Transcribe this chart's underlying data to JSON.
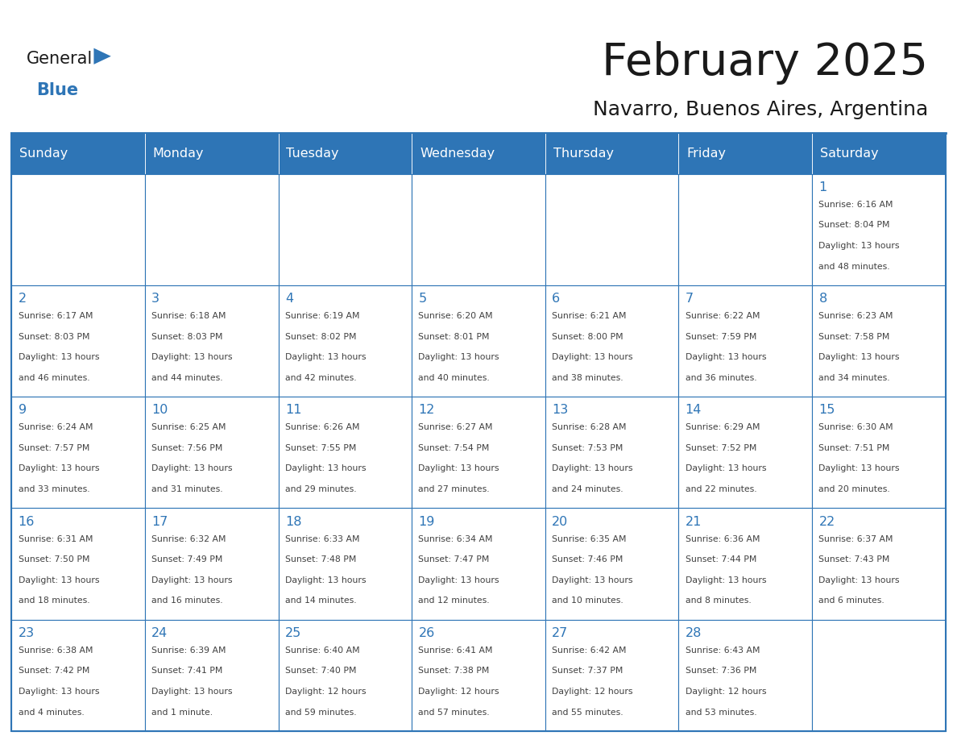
{
  "title": "February 2025",
  "subtitle": "Navarro, Buenos Aires, Argentina",
  "header_bg": "#2E75B6",
  "header_text_color": "#FFFFFF",
  "grid_color": "#2E75B6",
  "days_of_week": [
    "Sunday",
    "Monday",
    "Tuesday",
    "Wednesday",
    "Thursday",
    "Friday",
    "Saturday"
  ],
  "title_color": "#1a1a1a",
  "subtitle_color": "#1a1a1a",
  "day_number_color": "#2E75B6",
  "cell_text_color": "#404040",
  "logo_general_color": "#1a1a1a",
  "logo_blue_color": "#2E75B6",
  "logo_triangle_color": "#2E75B6",
  "calendar": [
    [
      null,
      null,
      null,
      null,
      null,
      null,
      {
        "day": 1,
        "sunrise": "6:16 AM",
        "sunset": "8:04 PM",
        "daylight_line1": "Daylight: 13 hours",
        "daylight_line2": "and 48 minutes."
      }
    ],
    [
      {
        "day": 2,
        "sunrise": "6:17 AM",
        "sunset": "8:03 PM",
        "daylight_line1": "Daylight: 13 hours",
        "daylight_line2": "and 46 minutes."
      },
      {
        "day": 3,
        "sunrise": "6:18 AM",
        "sunset": "8:03 PM",
        "daylight_line1": "Daylight: 13 hours",
        "daylight_line2": "and 44 minutes."
      },
      {
        "day": 4,
        "sunrise": "6:19 AM",
        "sunset": "8:02 PM",
        "daylight_line1": "Daylight: 13 hours",
        "daylight_line2": "and 42 minutes."
      },
      {
        "day": 5,
        "sunrise": "6:20 AM",
        "sunset": "8:01 PM",
        "daylight_line1": "Daylight: 13 hours",
        "daylight_line2": "and 40 minutes."
      },
      {
        "day": 6,
        "sunrise": "6:21 AM",
        "sunset": "8:00 PM",
        "daylight_line1": "Daylight: 13 hours",
        "daylight_line2": "and 38 minutes."
      },
      {
        "day": 7,
        "sunrise": "6:22 AM",
        "sunset": "7:59 PM",
        "daylight_line1": "Daylight: 13 hours",
        "daylight_line2": "and 36 minutes."
      },
      {
        "day": 8,
        "sunrise": "6:23 AM",
        "sunset": "7:58 PM",
        "daylight_line1": "Daylight: 13 hours",
        "daylight_line2": "and 34 minutes."
      }
    ],
    [
      {
        "day": 9,
        "sunrise": "6:24 AM",
        "sunset": "7:57 PM",
        "daylight_line1": "Daylight: 13 hours",
        "daylight_line2": "and 33 minutes."
      },
      {
        "day": 10,
        "sunrise": "6:25 AM",
        "sunset": "7:56 PM",
        "daylight_line1": "Daylight: 13 hours",
        "daylight_line2": "and 31 minutes."
      },
      {
        "day": 11,
        "sunrise": "6:26 AM",
        "sunset": "7:55 PM",
        "daylight_line1": "Daylight: 13 hours",
        "daylight_line2": "and 29 minutes."
      },
      {
        "day": 12,
        "sunrise": "6:27 AM",
        "sunset": "7:54 PM",
        "daylight_line1": "Daylight: 13 hours",
        "daylight_line2": "and 27 minutes."
      },
      {
        "day": 13,
        "sunrise": "6:28 AM",
        "sunset": "7:53 PM",
        "daylight_line1": "Daylight: 13 hours",
        "daylight_line2": "and 24 minutes."
      },
      {
        "day": 14,
        "sunrise": "6:29 AM",
        "sunset": "7:52 PM",
        "daylight_line1": "Daylight: 13 hours",
        "daylight_line2": "and 22 minutes."
      },
      {
        "day": 15,
        "sunrise": "6:30 AM",
        "sunset": "7:51 PM",
        "daylight_line1": "Daylight: 13 hours",
        "daylight_line2": "and 20 minutes."
      }
    ],
    [
      {
        "day": 16,
        "sunrise": "6:31 AM",
        "sunset": "7:50 PM",
        "daylight_line1": "Daylight: 13 hours",
        "daylight_line2": "and 18 minutes."
      },
      {
        "day": 17,
        "sunrise": "6:32 AM",
        "sunset": "7:49 PM",
        "daylight_line1": "Daylight: 13 hours",
        "daylight_line2": "and 16 minutes."
      },
      {
        "day": 18,
        "sunrise": "6:33 AM",
        "sunset": "7:48 PM",
        "daylight_line1": "Daylight: 13 hours",
        "daylight_line2": "and 14 minutes."
      },
      {
        "day": 19,
        "sunrise": "6:34 AM",
        "sunset": "7:47 PM",
        "daylight_line1": "Daylight: 13 hours",
        "daylight_line2": "and 12 minutes."
      },
      {
        "day": 20,
        "sunrise": "6:35 AM",
        "sunset": "7:46 PM",
        "daylight_line1": "Daylight: 13 hours",
        "daylight_line2": "and 10 minutes."
      },
      {
        "day": 21,
        "sunrise": "6:36 AM",
        "sunset": "7:44 PM",
        "daylight_line1": "Daylight: 13 hours",
        "daylight_line2": "and 8 minutes."
      },
      {
        "day": 22,
        "sunrise": "6:37 AM",
        "sunset": "7:43 PM",
        "daylight_line1": "Daylight: 13 hours",
        "daylight_line2": "and 6 minutes."
      }
    ],
    [
      {
        "day": 23,
        "sunrise": "6:38 AM",
        "sunset": "7:42 PM",
        "daylight_line1": "Daylight: 13 hours",
        "daylight_line2": "and 4 minutes."
      },
      {
        "day": 24,
        "sunrise": "6:39 AM",
        "sunset": "7:41 PM",
        "daylight_line1": "Daylight: 13 hours",
        "daylight_line2": "and 1 minute."
      },
      {
        "day": 25,
        "sunrise": "6:40 AM",
        "sunset": "7:40 PM",
        "daylight_line1": "Daylight: 12 hours",
        "daylight_line2": "and 59 minutes."
      },
      {
        "day": 26,
        "sunrise": "6:41 AM",
        "sunset": "7:38 PM",
        "daylight_line1": "Daylight: 12 hours",
        "daylight_line2": "and 57 minutes."
      },
      {
        "day": 27,
        "sunrise": "6:42 AM",
        "sunset": "7:37 PM",
        "daylight_line1": "Daylight: 12 hours",
        "daylight_line2": "and 55 minutes."
      },
      {
        "day": 28,
        "sunrise": "6:43 AM",
        "sunset": "7:36 PM",
        "daylight_line1": "Daylight: 12 hours",
        "daylight_line2": "and 53 minutes."
      },
      null
    ]
  ]
}
